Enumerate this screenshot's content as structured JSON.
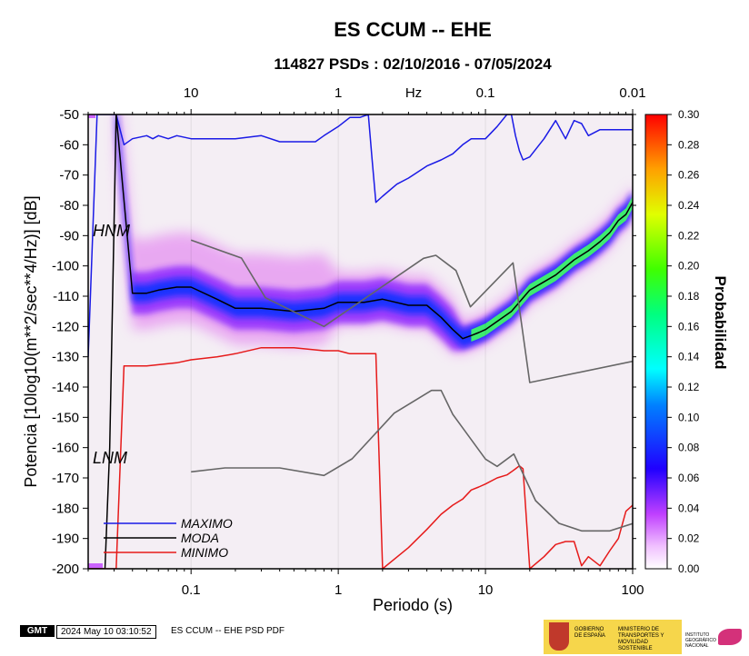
{
  "chart_data": {
    "type": "line",
    "title": "ES CCUM -- EHE",
    "subtitle": "114827 PSDs : 02/10/2016 - 07/05/2024",
    "xlabel": "Periodo (s)",
    "ylabel": "Potencia [10log10(m**2/sec**4/Hz)] [dB]",
    "top_axis_label": "Hz",
    "x_scale": "log",
    "xlim": [
      0.02,
      100
    ],
    "ylim": [
      -200,
      -50
    ],
    "x_ticks": [
      0.1,
      1,
      10,
      100
    ],
    "x_tick_labels": [
      "0.1",
      "1",
      "10",
      "100"
    ],
    "top_ticks_period": [
      0.1,
      1,
      10,
      100
    ],
    "top_tick_labels": [
      "10",
      "1",
      "0.1",
      "0.01"
    ],
    "y_ticks": [
      -200,
      -190,
      -180,
      -170,
      -160,
      -150,
      -140,
      -130,
      -120,
      -110,
      -100,
      -90,
      -80,
      -70,
      -60,
      -50
    ],
    "y_tick_labels": [
      "-200",
      "-190",
      "-180",
      "-170",
      "-160",
      "-150",
      "-140",
      "-130",
      "-120",
      "-110",
      "-100",
      "-90",
      "-80",
      "-70",
      "-60",
      "-50"
    ],
    "colorbar": {
      "label": "Probabilidad",
      "range": [
        0,
        0.3
      ],
      "ticks": [
        0,
        0.02,
        0.04,
        0.06,
        0.08,
        0.1,
        0.12,
        0.14,
        0.16,
        0.18,
        0.2,
        0.22,
        0.24,
        0.26,
        0.28,
        0.3
      ],
      "tick_labels": [
        "0.00",
        "0.02",
        "0.04",
        "0.06",
        "0.08",
        "0.10",
        "0.12",
        "0.14",
        "0.16",
        "0.18",
        "0.20",
        "0.22",
        "0.24",
        "0.26",
        "0.28",
        "0.30"
      ]
    },
    "annotations": [
      "HNM",
      "LNM"
    ],
    "series": [
      {
        "name": "MAXIMO",
        "color": "#1a1ae6",
        "x": [
          0.02,
          0.023,
          0.026,
          0.028,
          0.031,
          0.035,
          0.04,
          0.05,
          0.055,
          0.06,
          0.07,
          0.08,
          0.1,
          0.15,
          0.2,
          0.3,
          0.4,
          0.5,
          0.6,
          0.7,
          0.8,
          1.0,
          1.2,
          1.4,
          1.6,
          1.7,
          1.8,
          2.0,
          2.5,
          3,
          4,
          5,
          6,
          7,
          8,
          9,
          10,
          12,
          14,
          15,
          16,
          17,
          18,
          20,
          25,
          30,
          35,
          40,
          45,
          50,
          60,
          70,
          80,
          90,
          100
        ],
        "y": [
          -130,
          -50,
          -50,
          -50,
          -50,
          -60,
          -58,
          -57,
          -58,
          -57,
          -58,
          -57,
          -58,
          -58,
          -58,
          -57,
          -59,
          -59,
          -59,
          -59,
          -57,
          -54,
          -51,
          -51,
          -50,
          -65,
          -79,
          -77,
          -73,
          -71,
          -67,
          -65,
          -63,
          -60,
          -58,
          -58,
          -58,
          -54,
          -50,
          -50,
          -57,
          -62,
          -65,
          -64,
          -58,
          -52,
          -58,
          -52,
          -53,
          -57,
          -55,
          -55,
          -55,
          -55,
          -55
        ]
      },
      {
        "name": "MODA",
        "color": "#000000",
        "x": [
          0.02,
          0.023,
          0.026,
          0.028,
          0.031,
          0.04,
          0.05,
          0.06,
          0.08,
          0.1,
          0.15,
          0.2,
          0.3,
          0.5,
          0.8,
          1.0,
          1.5,
          2.0,
          3,
          4,
          5,
          6,
          7,
          8,
          9,
          10,
          15,
          20,
          30,
          40,
          50,
          60,
          70,
          80,
          90,
          100
        ],
        "y": [
          -200,
          -200,
          -200,
          -160,
          -50,
          -109,
          -109,
          -108,
          -107,
          -107,
          -111,
          -114,
          -114,
          -115,
          -114,
          -112,
          -112,
          -111,
          -113,
          -113,
          -117,
          -121,
          -124,
          -123,
          -122,
          -121,
          -115,
          -108,
          -103,
          -98,
          -95,
          -92,
          -89,
          -85,
          -83,
          -79
        ]
      },
      {
        "name": "MINIMO",
        "color": "#e61a1a",
        "x": [
          0.02,
          0.023,
          0.026,
          0.028,
          0.031,
          0.035,
          0.05,
          0.08,
          0.1,
          0.15,
          0.2,
          0.3,
          0.5,
          0.8,
          1.0,
          1.2,
          1.5,
          1.8,
          2.0,
          3,
          4,
          5,
          6,
          7,
          8,
          9,
          10,
          12,
          14,
          15,
          16,
          17,
          18,
          20,
          25,
          30,
          35,
          40,
          45,
          50,
          60,
          70,
          80,
          90,
          100
        ],
        "y": [
          -200,
          -200,
          -200,
          -200,
          -200,
          -133,
          -133,
          -132,
          -131,
          -130,
          -129,
          -127,
          -127,
          -128,
          -128,
          -129,
          -129,
          -129,
          -200,
          -193,
          -187,
          -182,
          -179,
          -177,
          -174,
          -173,
          -172,
          -170,
          -169,
          -168,
          -167,
          -166,
          -167,
          -200,
          -196,
          -192,
          -191,
          -191,
          -199,
          -196,
          -199,
          -194,
          -190,
          -181,
          -179
        ]
      },
      {
        "name": "HNM",
        "color": "#666666",
        "x": [
          0.1,
          0.22,
          0.32,
          0.8,
          3.8,
          4.6,
          6.3,
          7.9,
          15.4,
          20,
          100
        ],
        "y": [
          -91.5,
          -97.4,
          -110.5,
          -120,
          -97.5,
          -96.5,
          -101.5,
          -113.5,
          -99,
          -138.5,
          -131.5
        ]
      },
      {
        "name": "LNM",
        "color": "#666666",
        "x": [
          0.1,
          0.17,
          0.4,
          0.8,
          1.24,
          2.4,
          4.3,
          5.0,
          6.0,
          10,
          12,
          15.6,
          21.9,
          31.6,
          45,
          70,
          101
        ],
        "y": [
          -168,
          -166.7,
          -166.7,
          -169.2,
          -163.7,
          -148.6,
          -141.1,
          -141.1,
          -149,
          -163.8,
          -166.2,
          -162.1,
          -177.5,
          -185,
          -187.5,
          -187.5,
          -185
        ]
      }
    ],
    "legend": {
      "position": "bottom-left",
      "entries": [
        "MAXIMO",
        "MODA",
        "MINIMO"
      ]
    }
  },
  "footer": {
    "gmt_logo": "GMT",
    "timestamp": "2024 May 10 03:10:52",
    "caption": "ES CCUM -- EHE PSD PDF",
    "gov_logo_text": "GOBIERNO DE ESPAÑA",
    "ministry_text": "MINISTERIO DE TRANSPORTES Y MOVILIDAD SOSTENIBLE",
    "institute_text": "INSTITUTO GEOGRÁFICO NACIONAL"
  },
  "colors": {
    "background": "#ffffff",
    "pdf_base": "#f4eef4",
    "pdf_low": "#e070f0",
    "pdf_mid": "#8820ff",
    "pdf_high": "#1030ff"
  }
}
